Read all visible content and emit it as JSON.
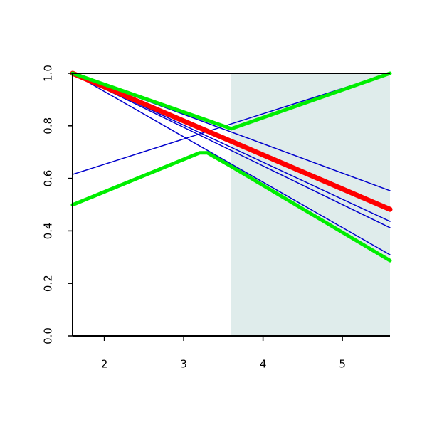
{
  "chart_data": {
    "type": "line",
    "xlim": [
      1.6,
      5.6
    ],
    "ylim": [
      0,
      1
    ],
    "xticks": [
      2,
      3,
      4,
      5
    ],
    "yticks": [
      {
        "value": 0,
        "label": "0.0"
      },
      {
        "value": 0.2,
        "label": "0.2"
      },
      {
        "value": 0.4,
        "label": "0.4"
      },
      {
        "value": 0.6,
        "label": "0.6"
      },
      {
        "value": 0.8,
        "label": "0.8"
      },
      {
        "value": 1,
        "label": "1.0"
      }
    ],
    "shade_xlim": [
      3.6,
      5.6
    ],
    "shade_color": "#dfeceb",
    "series": [
      {
        "color": "#0000cc",
        "line_width": 1.5,
        "x": [
          1.6,
          5.6
        ],
        "values": [
          0.615,
          1.0
        ]
      },
      {
        "color": "#0000cc",
        "line_width": 1.5,
        "x": [
          1.6,
          5.6
        ],
        "values": [
          1.0,
          0.553
        ]
      },
      {
        "color": "#0000cc",
        "line_width": 1.5,
        "x": [
          1.6,
          5.6
        ],
        "values": [
          1.0,
          0.436
        ]
      },
      {
        "color": "#0000cc",
        "line_width": 1.5,
        "x": [
          1.6,
          5.6
        ],
        "values": [
          1.0,
          0.412
        ]
      },
      {
        "color": "#0000cc",
        "line_width": 1.5,
        "x": [
          1.6,
          5.6
        ],
        "values": [
          1.0,
          0.309
        ]
      },
      {
        "color": "#ff0000",
        "line_width": 7,
        "x": [
          1.6,
          5.6
        ],
        "values": [
          1.0,
          0.482
        ]
      },
      {
        "color": "#00ee00",
        "line_width": 5,
        "x": [
          1.6,
          3.6,
          5.6
        ],
        "values": [
          1.0,
          0.789,
          1.0
        ]
      },
      {
        "color": "#00ee00",
        "line_width": 5,
        "x": [
          1.6,
          3.2,
          3.3,
          3.6,
          5.6
        ],
        "values": [
          0.499,
          0.697,
          0.697,
          0.645,
          0.287
        ]
      }
    ]
  }
}
